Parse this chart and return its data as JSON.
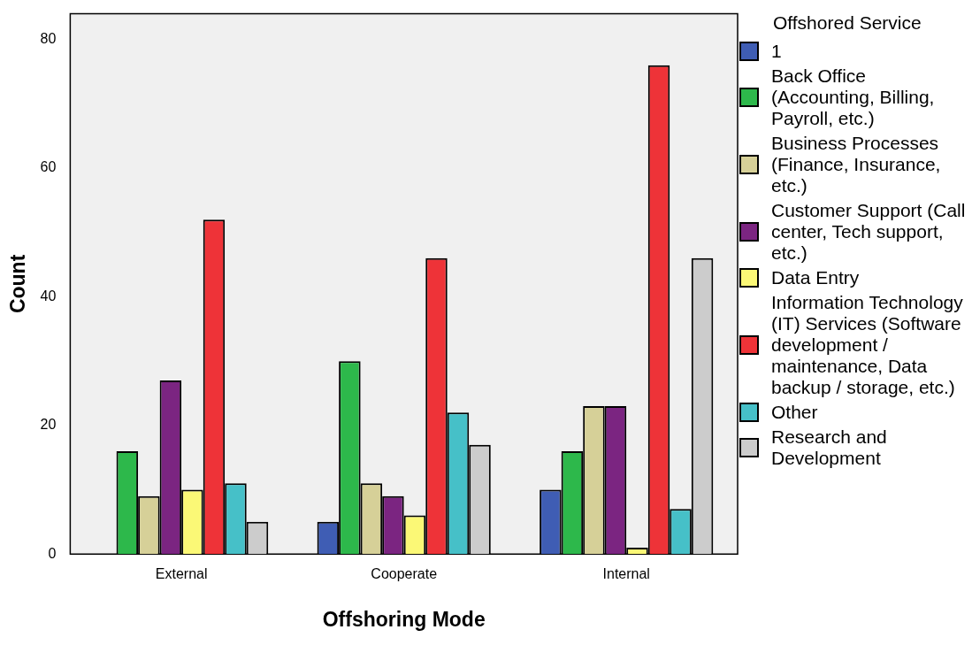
{
  "chart_data": {
    "type": "bar",
    "xlabel": "Offshoring Mode",
    "ylabel": "Count",
    "legend_title": "Offshored Service",
    "legend": "right",
    "categories": [
      "External",
      "Cooperate",
      "Internal"
    ],
    "ylim": [
      0,
      84
    ],
    "yticks": [
      0,
      20,
      40,
      60,
      80
    ],
    "grid": false,
    "series": [
      {
        "name": "1",
        "color": "#3f5db4",
        "values": [
          0,
          5,
          10
        ]
      },
      {
        "name": "Back Office (Accounting, Billing, Payroll, etc.)",
        "color": "#2db84b",
        "values": [
          16,
          30,
          16
        ]
      },
      {
        "name": "Business Processes (Finance, Insurance, etc.)",
        "color": "#d6d098",
        "values": [
          9,
          11,
          23
        ]
      },
      {
        "name": "Customer Support (Call center, Tech support, etc.)",
        "color": "#7b2581",
        "values": [
          27,
          9,
          23
        ]
      },
      {
        "name": "Data Entry",
        "color": "#fbf876",
        "values": [
          10,
          6,
          1
        ]
      },
      {
        "name": "Information Technology (IT) Services (Software development / maintenance, Data backup / storage, etc.)",
        "color": "#ee3338",
        "values": [
          52,
          46,
          76
        ]
      },
      {
        "name": "Other",
        "color": "#46c0c8",
        "values": [
          11,
          22,
          7
        ]
      },
      {
        "name": "Research and Development",
        "color": "#cccccc",
        "values": [
          5,
          17,
          46
        ]
      }
    ]
  }
}
